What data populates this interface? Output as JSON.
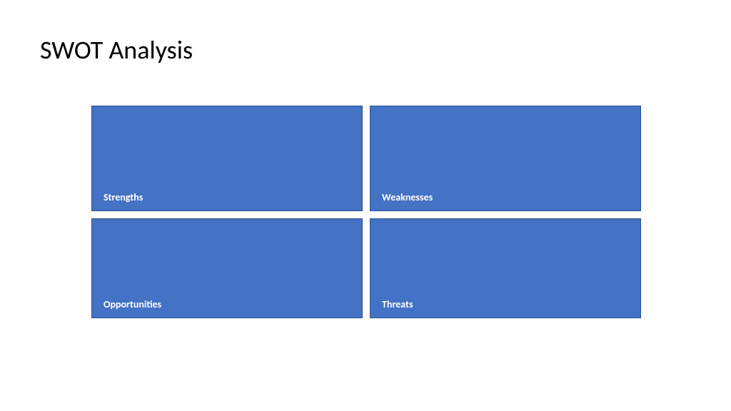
{
  "slide": {
    "title": "SWOT Analysis",
    "title_fontsize": 36,
    "title_color": "#000000",
    "background_color": "#ffffff"
  },
  "swot": {
    "type": "infographic",
    "layout": "2x2-grid",
    "gap": 10,
    "quadrant_fill": "#4472c4",
    "quadrant_border": "#2f528f",
    "label_color": "#ffffff",
    "label_fontsize": 14,
    "label_fontweight": 600,
    "quadrants": [
      {
        "key": "strengths",
        "label": "Strengths"
      },
      {
        "key": "weaknesses",
        "label": "Weaknesses"
      },
      {
        "key": "opportunities",
        "label": "Opportunities"
      },
      {
        "key": "threats",
        "label": "Threats"
      }
    ]
  }
}
